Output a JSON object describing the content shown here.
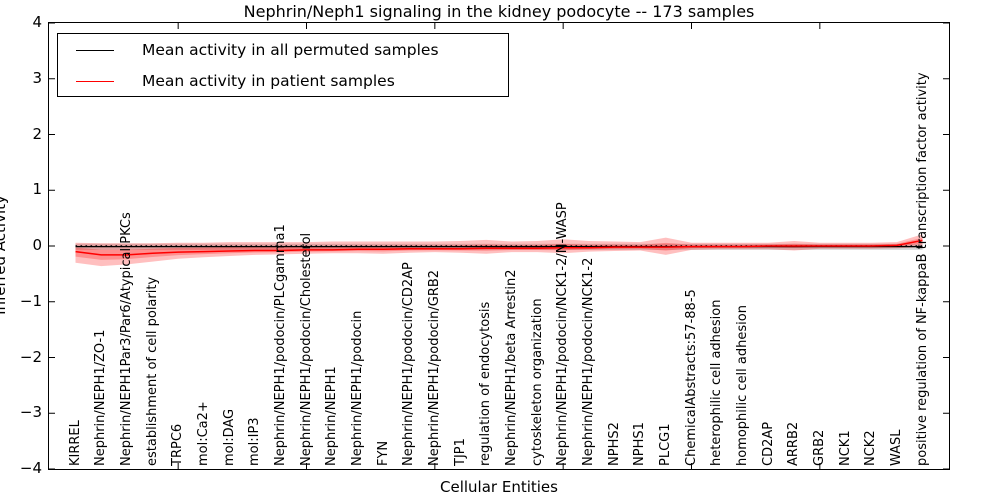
{
  "title": "Nephrin/Neph1 signaling in the kidney podocyte -- 173 samples",
  "axes": {
    "ylabel": "Inferred Activity",
    "xlabel": "Cellular Entities",
    "yticks": [
      {
        "v": 4,
        "label": "4"
      },
      {
        "v": 3,
        "label": "3"
      },
      {
        "v": 2,
        "label": "2"
      },
      {
        "v": 1,
        "label": "1"
      },
      {
        "v": 0,
        "label": "0"
      },
      {
        "v": -1,
        "label": "−1"
      },
      {
        "v": -2,
        "label": "−2"
      },
      {
        "v": -3,
        "label": "−3"
      },
      {
        "v": -4,
        "label": "−4"
      }
    ]
  },
  "legend": {
    "items": [
      {
        "label": "Mean activity in all permuted samples",
        "color": "#000000"
      },
      {
        "label": "Mean activity in patient samples",
        "color": "#ff0000"
      }
    ]
  },
  "chart_data": {
    "type": "line",
    "title": "Nephrin/Neph1 signaling in the kidney podocyte -- 173 samples",
    "xlabel": "Cellular Entities",
    "ylabel": "Inferred Activity",
    "ylim": [
      -4,
      4
    ],
    "grid": false,
    "legend_position": "upper left",
    "zero_line_style": "dotted",
    "categories": [
      "KIRREL",
      "Nephrin/NEPH1/ZO-1",
      "Nephrin/NEPH1Par3/Par6/Atypical PKCs",
      "establishment of cell polarity",
      "TRPC6",
      "mol:Ca2+",
      "mol:DAG",
      "mol:IP3",
      "Nephrin/NEPH1/podocin/PLCgamma1",
      "Nephrin/NEPH1/podocin/Cholesterol",
      "Nephrin/NEPH1",
      "Nephrin/NEPH1/podocin",
      "FYN",
      "Nephrin/NEPH1/podocin/CD2AP",
      "Nephrin/NEPH1/podocin/GRB2",
      "TJP1",
      "regulation of endocytosis",
      "Nephrin/NEPH1/beta Arrestin2",
      "cytoskeleton organization",
      "Nephrin/NEPH1/podocin/NCK1-2/N-WASP",
      "Nephrin/NEPH1/podocin/NCK1-2",
      "NPHS2",
      "NPHS1",
      "PLCG1",
      "ChemicalAbstracts:57-88-5",
      "heterophilic cell adhesion",
      "homophilic cell adhesion",
      "CD2AP",
      "ARRB2",
      "GRB2",
      "NCK1",
      "NCK2",
      "WASL",
      "positive regulation of NF-kappaB transcription factor activity"
    ],
    "series": [
      {
        "name": "Mean activity in all permuted samples",
        "color": "#000000",
        "values": -0.01,
        "band_lo": -0.07,
        "band_hi": 0.04,
        "band_color": "#000000",
        "band_alpha": 0.16
      },
      {
        "name": "Mean activity in patient samples",
        "color": "#ff0000",
        "values": [
          -0.1,
          -0.16,
          -0.16,
          -0.13,
          -0.11,
          -0.1,
          -0.09,
          -0.08,
          -0.08,
          -0.07,
          -0.07,
          -0.06,
          -0.06,
          -0.05,
          -0.05,
          -0.05,
          -0.04,
          -0.04,
          -0.04,
          -0.03,
          -0.03,
          -0.02,
          -0.02,
          -0.02,
          -0.01,
          -0.01,
          -0.01,
          0.0,
          0.0,
          0.0,
          0.0,
          0.0,
          0.01,
          0.1
        ],
        "band_lo": [
          -0.3,
          -0.36,
          -0.33,
          -0.28,
          -0.23,
          -0.2,
          -0.18,
          -0.16,
          -0.15,
          -0.14,
          -0.13,
          -0.13,
          -0.14,
          -0.12,
          -0.11,
          -0.12,
          -0.14,
          -0.11,
          -0.11,
          -0.13,
          -0.1,
          -0.09,
          -0.08,
          -0.16,
          -0.07,
          -0.06,
          -0.06,
          -0.06,
          -0.08,
          -0.05,
          -0.05,
          -0.05,
          -0.04,
          -0.02
        ],
        "band_hi": [
          0.06,
          0.05,
          0.05,
          0.05,
          0.06,
          0.06,
          0.07,
          0.07,
          0.07,
          0.07,
          0.08,
          0.08,
          0.08,
          0.08,
          0.08,
          0.09,
          0.11,
          0.08,
          0.09,
          0.12,
          0.09,
          0.08,
          0.07,
          0.15,
          0.06,
          0.06,
          0.06,
          0.06,
          0.09,
          0.06,
          0.06,
          0.06,
          0.07,
          0.21
        ],
        "band_color": "#ff0000",
        "band_alpha": 0.25
      }
    ]
  }
}
